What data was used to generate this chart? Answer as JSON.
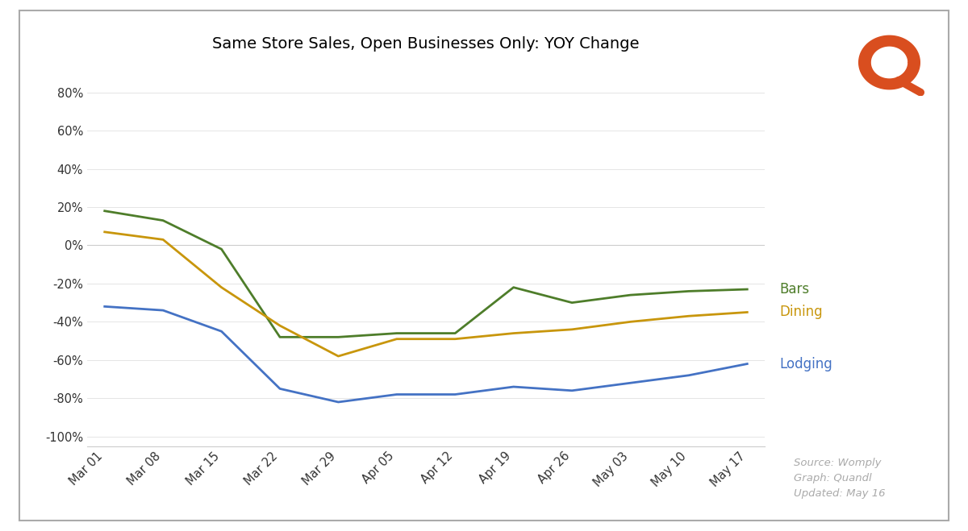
{
  "title": "Same Store Sales, Open Businesses Only: YOY Change",
  "x_labels": [
    "Mar 01",
    "Mar 08",
    "Mar 15",
    "Mar 22",
    "Mar 29",
    "Apr 05",
    "Apr 12",
    "Apr 19",
    "Apr 26",
    "May 03",
    "May 10",
    "May 17"
  ],
  "bars_data": [
    18,
    13,
    -2,
    -48,
    -48,
    -46,
    -46,
    -22,
    -30,
    -26,
    -24,
    -23
  ],
  "dining_data": [
    7,
    3,
    -22,
    -42,
    -58,
    -49,
    -49,
    -46,
    -44,
    -40,
    -37,
    -35
  ],
  "lodging_data": [
    -32,
    -34,
    -45,
    -75,
    -82,
    -78,
    -78,
    -74,
    -76,
    -72,
    -68,
    -62
  ],
  "bars_color": "#4e7d2a",
  "dining_color": "#c8960c",
  "lodging_color": "#4472c4",
  "bars_label": "Bars",
  "dining_label": "Dining",
  "lodging_label": "Lodging",
  "ylim": [
    -105,
    95
  ],
  "yticks": [
    -100,
    -80,
    -60,
    -40,
    -20,
    0,
    20,
    40,
    60,
    80
  ],
  "source_text": "Source: Womply\nGraph: Quandl\nUpdated: May 16",
  "background_color": "#ffffff",
  "logo_color": "#d94e1f"
}
